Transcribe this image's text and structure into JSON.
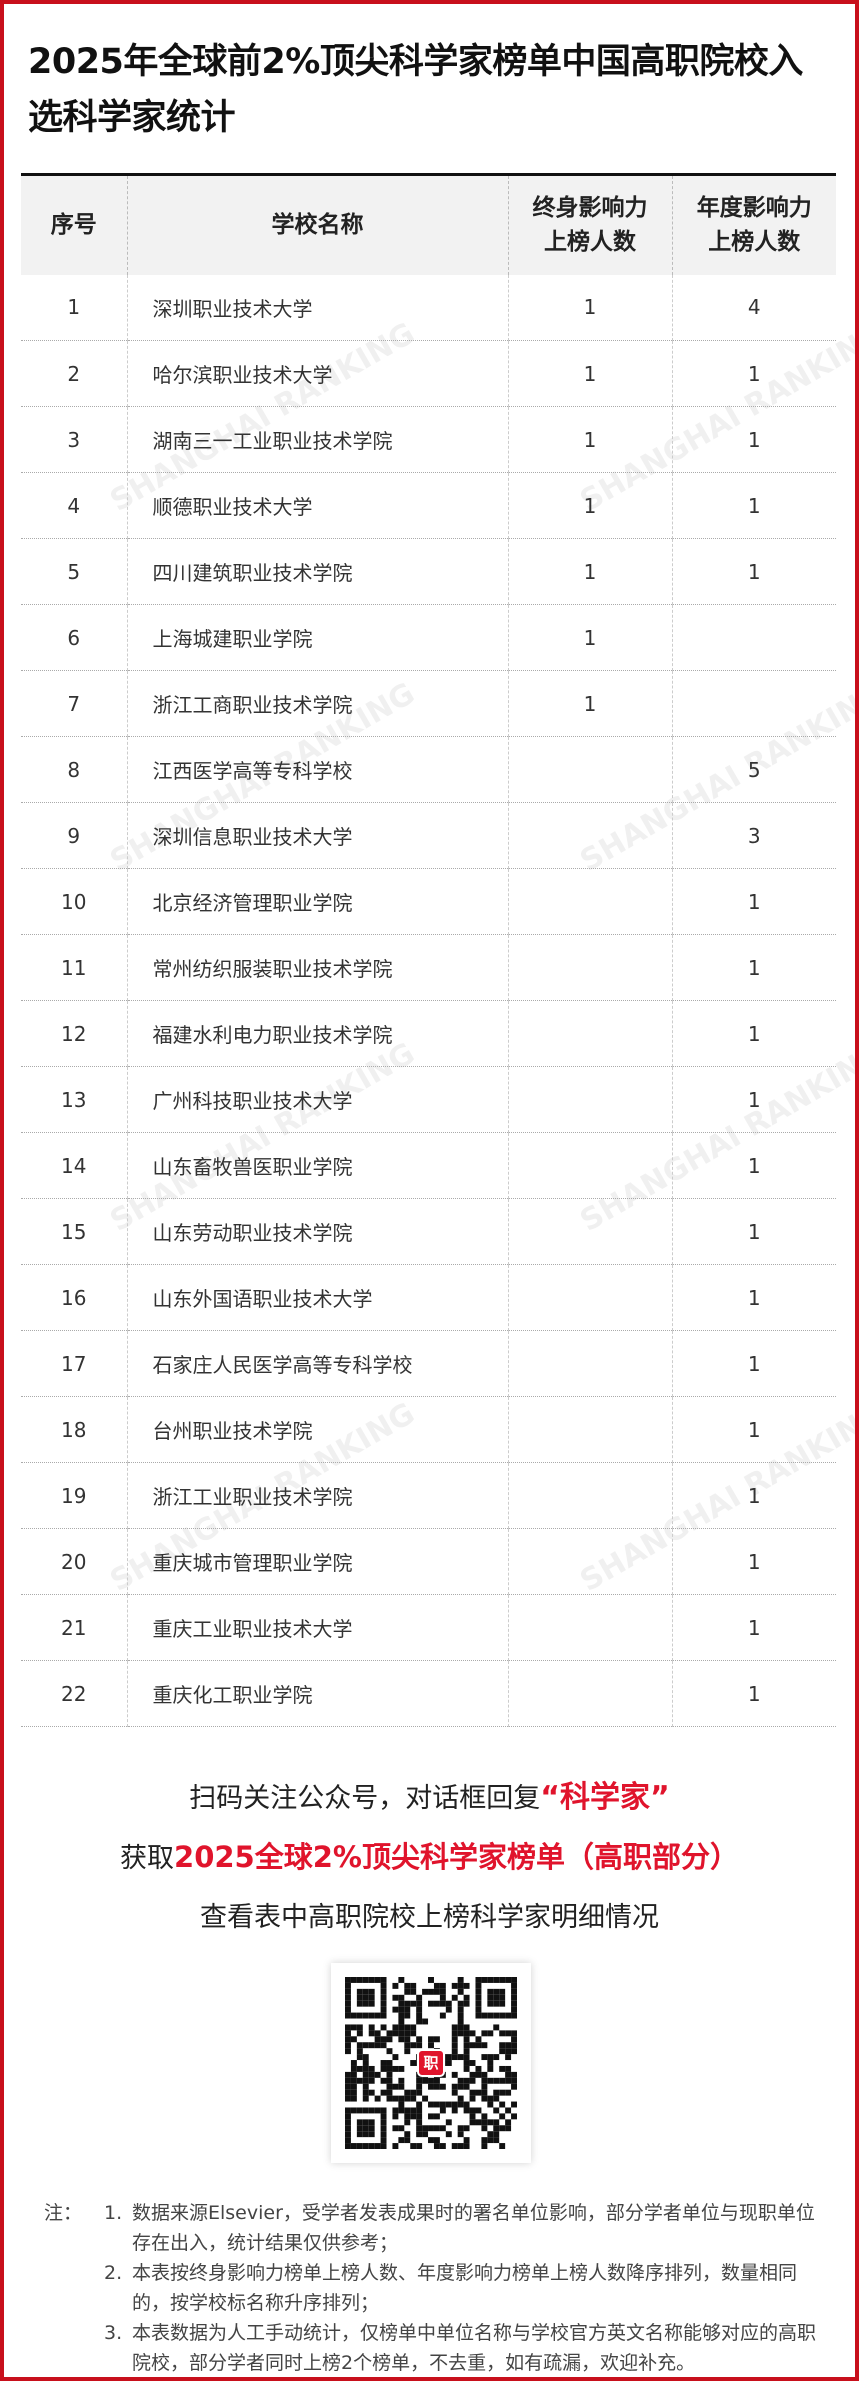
{
  "title": "2025年全球前2%顶尖科学家榜单中国高职院校入选科学家统计",
  "table": {
    "headers": [
      "序号",
      "学校名称",
      "终身影响力上榜人数",
      "年度影响力上榜人数"
    ],
    "rows": [
      [
        "1",
        "深圳职业技术大学",
        "1",
        "4"
      ],
      [
        "2",
        "哈尔滨职业技术大学",
        "1",
        "1"
      ],
      [
        "3",
        "湖南三一工业职业技术学院",
        "1",
        "1"
      ],
      [
        "4",
        "顺德职业技术大学",
        "1",
        "1"
      ],
      [
        "5",
        "四川建筑职业技术学院",
        "1",
        "1"
      ],
      [
        "6",
        "上海城建职业学院",
        "1",
        ""
      ],
      [
        "7",
        "浙江工商职业技术学院",
        "1",
        ""
      ],
      [
        "8",
        "江西医学高等专科学校",
        "",
        "5"
      ],
      [
        "9",
        "深圳信息职业技术大学",
        "",
        "3"
      ],
      [
        "10",
        "北京经济管理职业学院",
        "",
        "1"
      ],
      [
        "11",
        "常州纺织服装职业技术学院",
        "",
        "1"
      ],
      [
        "12",
        "福建水利电力职业技术学院",
        "",
        "1"
      ],
      [
        "13",
        "广州科技职业技术大学",
        "",
        "1"
      ],
      [
        "14",
        "山东畜牧兽医职业学院",
        "",
        "1"
      ],
      [
        "15",
        "山东劳动职业技术学院",
        "",
        "1"
      ],
      [
        "16",
        "山东外国语职业技术大学",
        "",
        "1"
      ],
      [
        "17",
        "石家庄人民医学高等专科学校",
        "",
        "1"
      ],
      [
        "18",
        "台州职业技术学院",
        "",
        "1"
      ],
      [
        "19",
        "浙江工业职业技术学院",
        "",
        "1"
      ],
      [
        "20",
        "重庆城市管理职业学院",
        "",
        "1"
      ],
      [
        "21",
        "重庆工业职业技术大学",
        "",
        "1"
      ],
      [
        "22",
        "重庆化工职业学院",
        "",
        "1"
      ]
    ]
  },
  "watermark": "SHANGHAI RANKING",
  "promo": {
    "line1_a": "扫码关注公众号，对话框回复",
    "line1_b": "“科学家”",
    "line2_a": "获取",
    "line2_b": "2025全球2%顶尖科学家榜单（高职部分）",
    "line3": "查看表中高职院校上榜科学家明细情况"
  },
  "qr_logo": "职",
  "notes": {
    "label": "注：",
    "items": [
      {
        "num": "1.",
        "text": "数据来源Elsevier，受学者发表成果时的署名单位影响，部分学者单位与现职单位存在出入，统计结果仅供参考；"
      },
      {
        "num": "2.",
        "text": "本表按终身影响力榜单上榜人数、年度影响力榜单上榜人数降序排列，数量相同的，按学校标名称升序排列；"
      },
      {
        "num": "3.",
        "text": "本表数据为人工手动统计，仅榜单中单位名称与学校官方英文名称能够对应的高职院校，部分学者同时上榜2个榜单，不去重，如有疏漏，欢迎补充。"
      }
    ]
  },
  "colors": {
    "accent": "#e0142c",
    "border": "#c8101c",
    "header_bg": "#f2f2f2"
  }
}
